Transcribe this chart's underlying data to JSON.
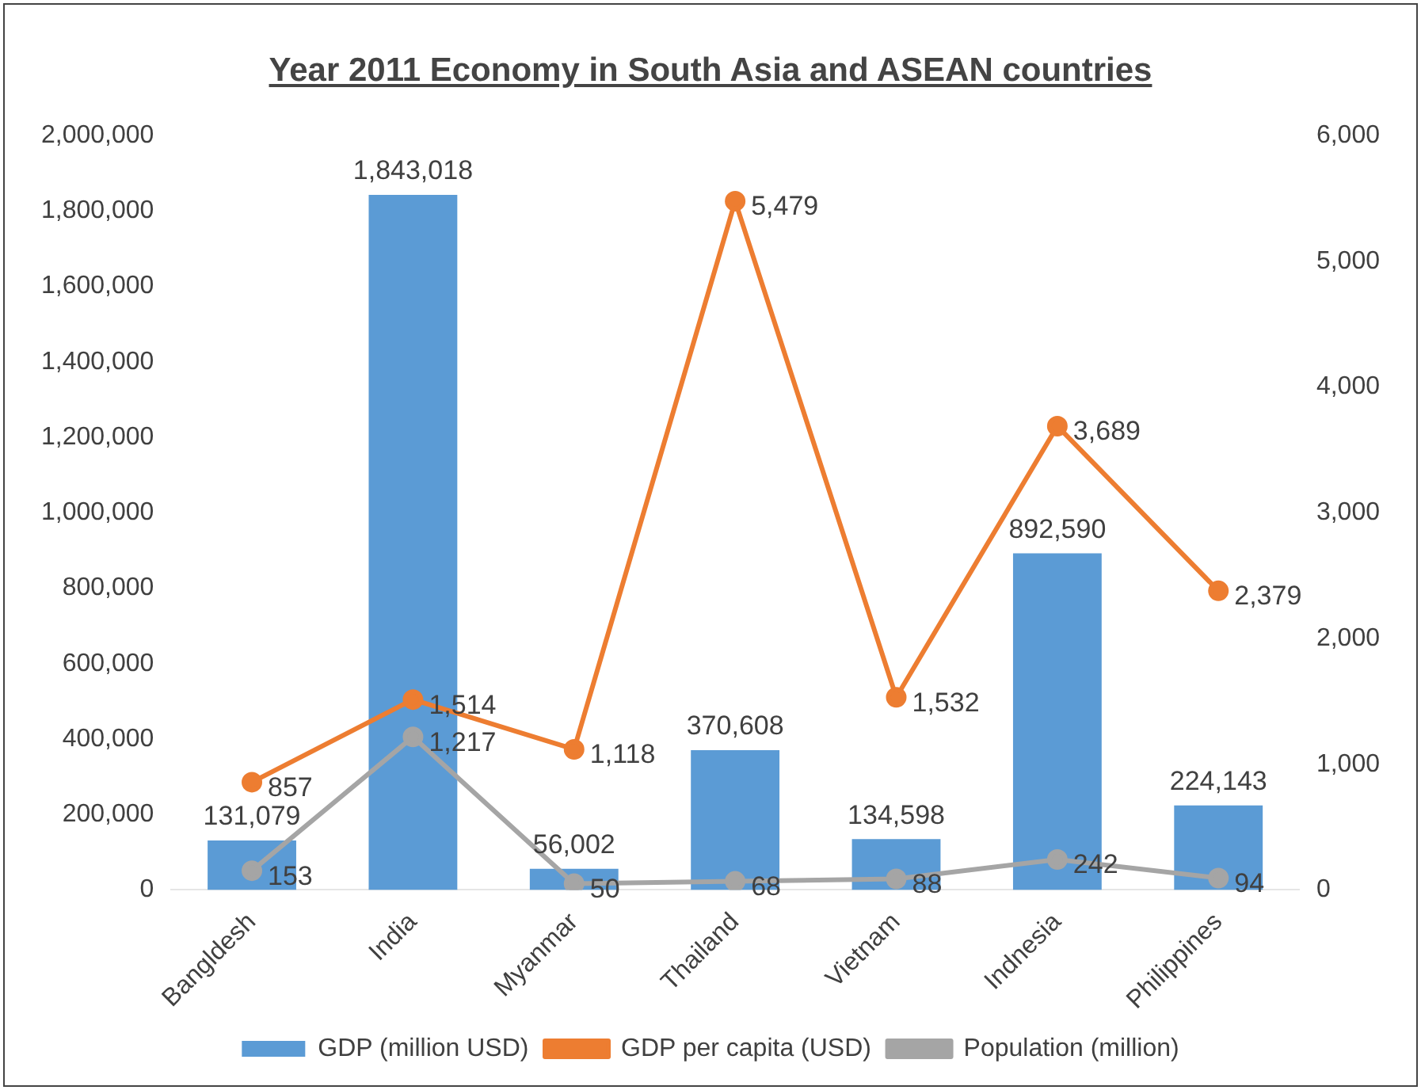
{
  "chart_data": {
    "type": "bar",
    "title": "Year 2011 Economy in South Asia and ASEAN countries",
    "categories": [
      "Bangldesh",
      "India",
      "Myanmar",
      "Thailand",
      "Vietnam",
      "Indnesia",
      "Philippines"
    ],
    "series": [
      {
        "name": "GDP (million USD)",
        "color": "#5b9bd5",
        "values": [
          131079,
          1843018,
          56002,
          370608,
          134598,
          892590,
          224143
        ],
        "value_labels": [
          "131,079",
          "1,843,018",
          "56,002",
          "370,608",
          "134,598",
          "892,590",
          "224,143"
        ]
      },
      {
        "name": "GDP per capita (USD)",
        "type": "line",
        "axis": "y2",
        "color": "#ed7d31",
        "values": [
          857,
          1514,
          1118,
          5479,
          1532,
          3689,
          2379
        ],
        "value_labels": [
          "857",
          "1,514",
          "1,118",
          "5,479",
          "1,532",
          "3,689",
          "2,379"
        ]
      },
      {
        "name": "Population (million)",
        "type": "line",
        "axis": "y2",
        "color": "#a5a5a5",
        "values": [
          153,
          1217,
          50,
          68,
          88,
          242,
          94
        ],
        "value_labels": [
          "153",
          "1,217",
          "50",
          "68",
          "88",
          "242",
          "94"
        ]
      }
    ],
    "ylim": [
      0,
      2000000
    ],
    "yticks": [
      0,
      {
        "value": 200000,
        "label": "200,000"
      },
      {
        "value": 400000,
        "label": "400,000"
      },
      {
        "value": 600000,
        "label": "600,000"
      },
      {
        "value": 800000,
        "label": "800,000"
      },
      {
        "value": 1000000,
        "label": "1,000,000"
      },
      {
        "value": 1200000,
        "label": "1,200,000"
      },
      {
        "value": 1400000,
        "label": "1,400,000"
      },
      {
        "value": 1600000,
        "label": "1,600,000"
      },
      {
        "value": 1800000,
        "label": "1,800,000"
      },
      {
        "value": 2000000,
        "label": "2,000,000"
      }
    ],
    "y2lim": [
      0,
      6000
    ],
    "y2ticks": [
      0,
      {
        "value": 1000,
        "label": "1,000"
      },
      {
        "value": 2000,
        "label": "2,000"
      },
      {
        "value": 3000,
        "label": "3,000"
      },
      {
        "value": 4000,
        "label": "4,000"
      },
      {
        "value": 5000,
        "label": "5,000"
      },
      {
        "value": 6000,
        "label": "6,000"
      }
    ],
    "grid": false,
    "legend": "bottom",
    "marker": "circle",
    "line_style": "solid"
  }
}
